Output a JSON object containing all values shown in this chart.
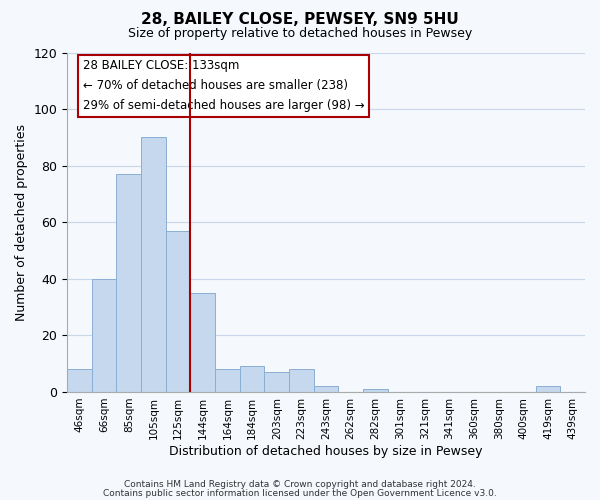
{
  "title1": "28, BAILEY CLOSE, PEWSEY, SN9 5HU",
  "title2": "Size of property relative to detached houses in Pewsey",
  "xlabel": "Distribution of detached houses by size in Pewsey",
  "ylabel": "Number of detached properties",
  "bar_labels": [
    "46sqm",
    "66sqm",
    "85sqm",
    "105sqm",
    "125sqm",
    "144sqm",
    "164sqm",
    "184sqm",
    "203sqm",
    "223sqm",
    "243sqm",
    "262sqm",
    "282sqm",
    "301sqm",
    "321sqm",
    "341sqm",
    "360sqm",
    "380sqm",
    "400sqm",
    "419sqm",
    "439sqm"
  ],
  "bar_values": [
    8,
    40,
    77,
    90,
    57,
    35,
    8,
    9,
    7,
    8,
    2,
    0,
    1,
    0,
    0,
    0,
    0,
    0,
    0,
    2,
    0
  ],
  "bar_color": "#c5d8ed",
  "bar_edge_color": "#8aafd4",
  "ylim": [
    0,
    120
  ],
  "yticks": [
    0,
    20,
    40,
    60,
    80,
    100,
    120
  ],
  "property_line_color": "#aa0000",
  "annotation_title": "28 BAILEY CLOSE: 133sqm",
  "annotation_line1": "← 70% of detached houses are smaller (238)",
  "annotation_line2": "29% of semi-detached houses are larger (98) →",
  "annotation_box_color": "#ffffff",
  "annotation_box_edge": "#aa0000",
  "footnote1": "Contains HM Land Registry data © Crown copyright and database right 2024.",
  "footnote2": "Contains public sector information licensed under the Open Government Licence v3.0.",
  "background_color": "#f5f8fd",
  "grid_color": "#c8d8ea"
}
